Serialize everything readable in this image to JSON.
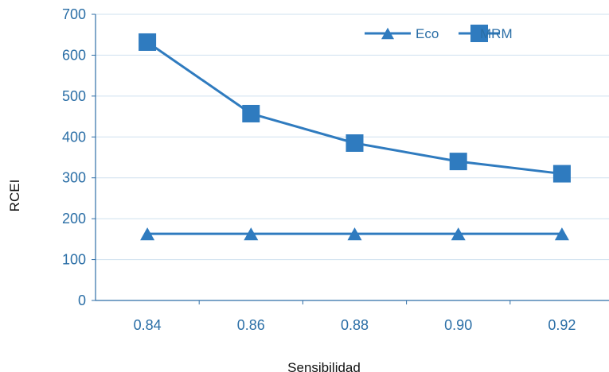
{
  "chart_data": {
    "type": "line",
    "title": "",
    "xlabel": "Sensibilidad",
    "ylabel": "RCEI",
    "categories": [
      "0.84",
      "0.86",
      "0.88",
      "0.90",
      "0.92"
    ],
    "ylim": [
      0,
      700
    ],
    "yticks": [
      0,
      100,
      200,
      300,
      400,
      500,
      600,
      700
    ],
    "grid": true,
    "legend_position": "top-right",
    "series": [
      {
        "name": "Eco",
        "marker": "triangle",
        "color": "#2f7bbf",
        "values": [
          163,
          163,
          163,
          163,
          163
        ]
      },
      {
        "name": "MRM",
        "marker": "square",
        "color": "#2f7bbf",
        "values": [
          632,
          457,
          385,
          340,
          310
        ]
      }
    ]
  }
}
